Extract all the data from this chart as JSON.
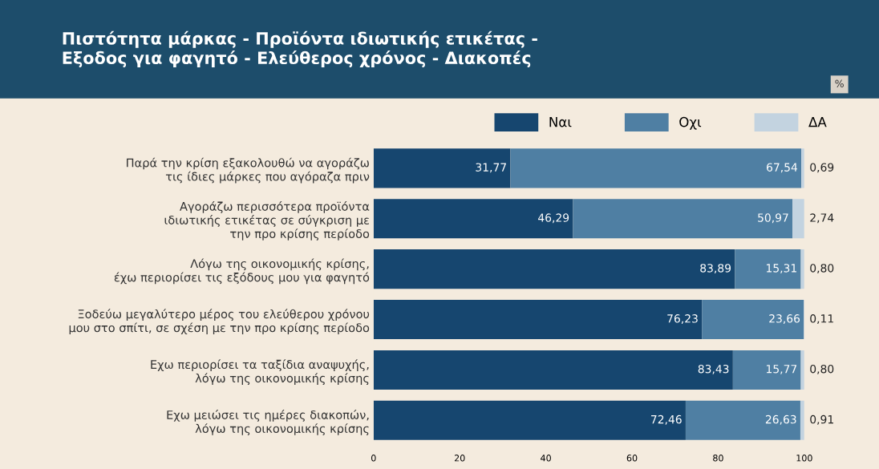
{
  "chart_data": {
    "type": "bar",
    "orientation": "horizontal",
    "stacked": true,
    "title": "Πιστότητα μάρκας - Προϊόντα ιδιωτικής ετικέτας -\nΕξοδος για φαγητό - Ελεύθερος χρόνος - Διακοπές",
    "annotations": [
      "%"
    ],
    "categories": [
      "Παρά την κρίση εξακολουθώ να αγοράζω\nτις ίδιες μάρκες που αγόραζα πριν",
      "Αγοράζω περισσότερα προϊόντα\nιδιωτικής ετικέτας σε σύγκριση με\nτην προ κρίσης περίοδο",
      "Λόγω της οικονομικής κρίσης,\nέχω περιορίσει τις εξόδους μου για φαγητό",
      "Ξοδεύω μεγαλύτερο μέρος του ελεύθερου χρόνου\nμου στο σπίτι, σε σχέση με την προ κρίσης περίοδο",
      "Εχω περιορίσει τα ταξίδια αναψυχής,\nλόγω της οικονομικής κρίσης",
      "Εχω μειώσει τις ημέρες διακοπών,\nλόγω της οικονομικής κρίσης"
    ],
    "series": [
      {
        "name": "Ναι",
        "color": "#16466f",
        "values": [
          31.77,
          46.29,
          83.89,
          76.23,
          83.43,
          72.46
        ],
        "value_labels": [
          "31,77",
          "46,29",
          "83,89",
          "76,23",
          "83,43",
          "72,46"
        ]
      },
      {
        "name": "Οχι",
        "color": "#4f7fa3",
        "values": [
          67.54,
          50.97,
          15.31,
          23.66,
          15.77,
          26.63
        ],
        "value_labels": [
          "67,54",
          "50,97",
          "15,31",
          "23,66",
          "15,77",
          "26,63"
        ]
      },
      {
        "name": "ΔΑ",
        "color": "#c3d3e0",
        "values": [
          0.69,
          2.74,
          0.8,
          0.11,
          0.8,
          0.91
        ],
        "value_labels": [
          "0,69",
          "2,74",
          "0,80",
          "0,11",
          "0,80",
          "0,91"
        ]
      }
    ],
    "xlim": [
      0,
      100
    ],
    "xticks": [
      0,
      20,
      40,
      60,
      80,
      100
    ],
    "grid": false,
    "legend": "top right"
  }
}
